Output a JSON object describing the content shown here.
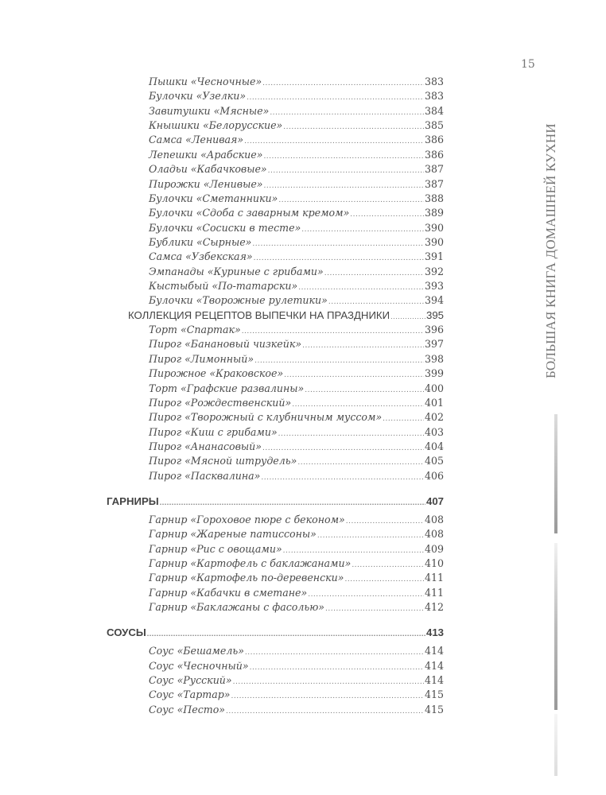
{
  "page_number": "15",
  "running_title": "БОЛЬШАЯ КНИГА ДОМАШНЕЙ КУХНИ",
  "toc": [
    {
      "level": "item",
      "title": "Пышки «Чесночные»",
      "page": "383"
    },
    {
      "level": "item",
      "title": "Булочки «Узелки»",
      "page": "383"
    },
    {
      "level": "item",
      "title": "Завитушки «Мясные»",
      "page": "384"
    },
    {
      "level": "item",
      "title": "Кнышики «Белорусские»",
      "page": "385"
    },
    {
      "level": "item",
      "title": "Самса «Ленивая»",
      "page": "386"
    },
    {
      "level": "item",
      "title": "Лепешки «Арабские»",
      "page": "386"
    },
    {
      "level": "item",
      "title": "Оладьи «Кабачковые»",
      "page": "387"
    },
    {
      "level": "item",
      "title": "Пирожки «Ленивые»",
      "page": "387"
    },
    {
      "level": "item",
      "title": "Булочки «Сметанники»",
      "page": "388"
    },
    {
      "level": "item",
      "title": "Булочки «Сдоба с заварным кремом»",
      "page": "389"
    },
    {
      "level": "item",
      "title": "Булочки «Сосиски в тесте»",
      "page": "390"
    },
    {
      "level": "item",
      "title": "Бублики «Сырные»",
      "page": "390"
    },
    {
      "level": "item",
      "title": "Самса «Узбекская»",
      "page": "391"
    },
    {
      "level": "item",
      "title": "Эмпанады «Куриные с грибами»",
      "page": "392"
    },
    {
      "level": "item",
      "title": "Кыстыбый «По-татарски»",
      "page": "393"
    },
    {
      "level": "item",
      "title": "Булочки «Творожные рулетики»",
      "page": "394"
    },
    {
      "level": "sub",
      "title": "КОЛЛЕКЦИЯ РЕЦЕПТОВ ВЫПЕЧКИ НА ПРАЗДНИКИ",
      "page": "395"
    },
    {
      "level": "item",
      "title": "Торт «Спартак»",
      "page": "396"
    },
    {
      "level": "item",
      "title": "Пирог «Банановый чизкейк»",
      "page": "397"
    },
    {
      "level": "item",
      "title": "Пирог «Лимонный»",
      "page": "398"
    },
    {
      "level": "item",
      "title": "Пирожное «Краковское»",
      "page": "399"
    },
    {
      "level": "item",
      "title": "Торт «Графские развалины»",
      "page": "400"
    },
    {
      "level": "item",
      "title": "Пирог «Рождественский»",
      "page": "401"
    },
    {
      "level": "item",
      "title": "Пирог «Творожный с клубничным муссом»",
      "page": "402"
    },
    {
      "level": "item",
      "title": "Пирог «Киш с грибами»",
      "page": "403"
    },
    {
      "level": "item",
      "title": "Пирог «Ананасовый»",
      "page": "404"
    },
    {
      "level": "item",
      "title": "Пирог «Мясной штрудель»",
      "page": "405"
    },
    {
      "level": "item",
      "title": "Пирог «Пасквалина»",
      "page": "406"
    },
    {
      "level": "sec",
      "title": "ГАРНИРЫ",
      "page": "407"
    },
    {
      "level": "item",
      "title": "Гарнир «Гороховое пюре с беконом»",
      "page": "408"
    },
    {
      "level": "item",
      "title": "Гарнир «Жареные патиссоны»",
      "page": "408"
    },
    {
      "level": "item",
      "title": "Гарнир «Рис с овощами»",
      "page": "409"
    },
    {
      "level": "item",
      "title": "Гарнир «Картофель с баклажанами»",
      "page": "410"
    },
    {
      "level": "item",
      "title": "Гарнир «Картофель по-деревенски»",
      "page": "411"
    },
    {
      "level": "item",
      "title": "Гарнир «Кабачки в сметане»",
      "page": "411"
    },
    {
      "level": "item",
      "title": "Гарнир «Баклажаны с фасолью»",
      "page": "412"
    },
    {
      "level": "sec",
      "title": "СОУСЫ",
      "page": "413"
    },
    {
      "level": "item",
      "title": "Соус «Бешамель»",
      "page": "414"
    },
    {
      "level": "item",
      "title": "Соус «Чесночный»",
      "page": "414"
    },
    {
      "level": "item",
      "title": "Соус «Русский»",
      "page": "414"
    },
    {
      "level": "item",
      "title": "Соус «Тартар»",
      "page": "415"
    },
    {
      "level": "item",
      "title": "Соус «Песто»",
      "page": "415"
    }
  ]
}
